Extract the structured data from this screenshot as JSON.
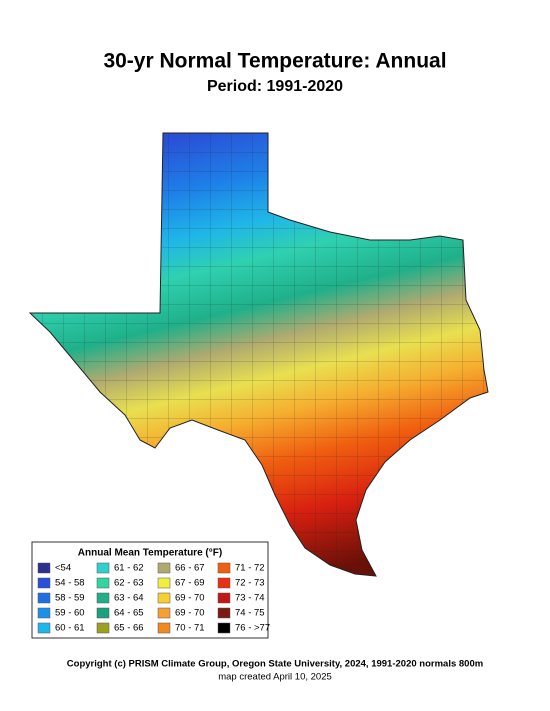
{
  "title": "30-yr Normal Temperature: Annual",
  "subtitle": "Period: 1991-2020",
  "legend": {
    "title": "Annual Mean Temperature (°F)",
    "items": [
      {
        "label": "<54",
        "color": "#2b2f8e"
      },
      {
        "label": "54 - 58",
        "color": "#2a4fd6"
      },
      {
        "label": "58 - 59",
        "color": "#1f6fe0"
      },
      {
        "label": "59 - 60",
        "color": "#1e90e8"
      },
      {
        "label": "60 - 61",
        "color": "#1fb6e8"
      },
      {
        "label": "61 - 62",
        "color": "#2fd1cf"
      },
      {
        "label": "62 - 63",
        "color": "#2fd6a0"
      },
      {
        "label": "63 - 64",
        "color": "#1fb08a"
      },
      {
        "label": "64 - 65",
        "color": "#1aa27a"
      },
      {
        "label": "65 - 66",
        "color": "#9aa020"
      },
      {
        "label": "66 - 67",
        "color": "#b0aa70"
      },
      {
        "label": "67 - 69",
        "color": "#f0ee40"
      },
      {
        "label": "69 - 70",
        "color": "#f5d030"
      },
      {
        "label": "69 - 70",
        "color": "#f5a030"
      },
      {
        "label": "70 - 71",
        "color": "#f08a20"
      },
      {
        "label": "71 - 72",
        "color": "#f06010"
      },
      {
        "label": "72 - 73",
        "color": "#e83010"
      },
      {
        "label": "73 - 74",
        "color": "#c01818"
      },
      {
        "label": "74 - 75",
        "color": "#7a1a10"
      },
      {
        "label": "76 - >77",
        "color": "#000000"
      }
    ]
  },
  "footer": {
    "copyright": "Copyright (c) PRISM Climate Group, Oregon State University, 2024, 1991-2020 normals 800m",
    "created": "map created April 10, 2025"
  }
}
